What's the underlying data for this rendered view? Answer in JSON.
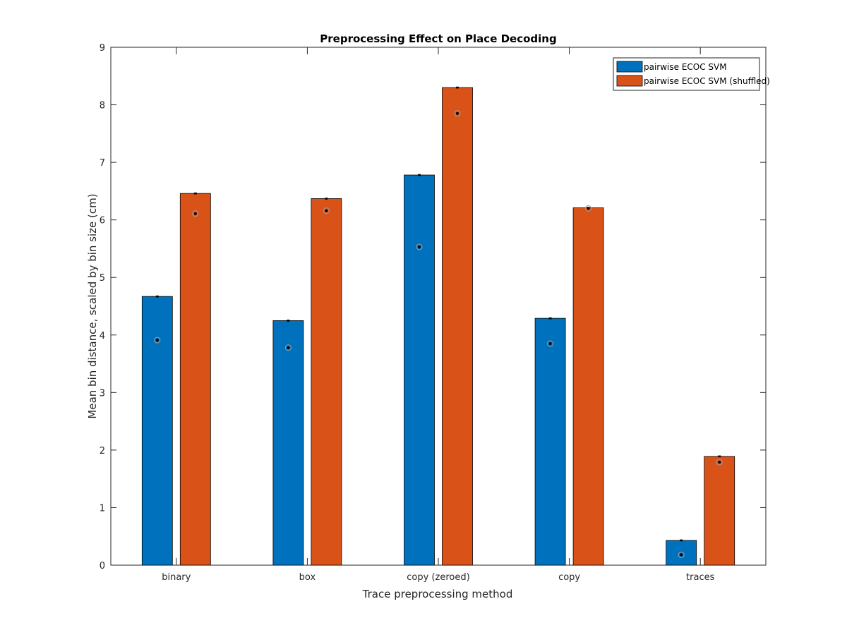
{
  "chart_data": {
    "type": "bar",
    "title": "Preprocessing Effect on Place Decoding",
    "xlabel": "Trace preprocessing method",
    "ylabel": "Mean bin distance, scaled by bin size (cm)",
    "ylim": [
      0,
      9
    ],
    "yticks": [
      "0",
      "1",
      "2",
      "3",
      "4",
      "5",
      "6",
      "7",
      "8",
      "9"
    ],
    "categories": [
      "binary",
      "box",
      "copy (zeroed)",
      "copy",
      "traces"
    ],
    "series": [
      {
        "name": "pairwise ECOC SVM",
        "color": "#0072BD",
        "values": [
          4.67,
          4.25,
          6.78,
          4.29,
          0.43
        ],
        "error": [
          0.01,
          0.01,
          0.01,
          0.01,
          0.01
        ],
        "medians": [
          3.91,
          3.78,
          5.53,
          3.85,
          0.18
        ]
      },
      {
        "name": "pairwise ECOC SVM (shuffled)",
        "color": "#D95319",
        "values": [
          6.46,
          6.37,
          8.3,
          6.21,
          1.89
        ],
        "error": [
          0.01,
          0.01,
          0.01,
          0.01,
          0.01
        ],
        "medians": [
          6.11,
          6.16,
          7.85,
          6.2,
          1.79
        ]
      }
    ],
    "grid": false,
    "legend_position": "top-right"
  }
}
